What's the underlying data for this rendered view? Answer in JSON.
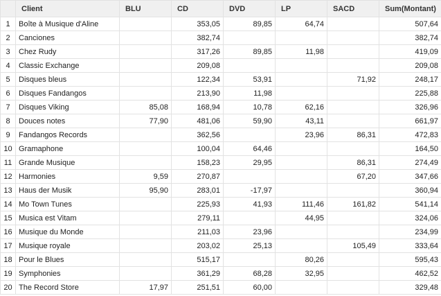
{
  "table": {
    "columns": [
      "Client",
      "BLU",
      "CD",
      "DVD",
      "LP",
      "SACD",
      "Sum(Montant)"
    ],
    "rows": [
      [
        1,
        "Boîte à Musique d'Aline",
        null,
        "353,05",
        "89,85",
        "64,74",
        null,
        "507,64"
      ],
      [
        2,
        "Canciones",
        null,
        "382,74",
        null,
        null,
        null,
        "382,74"
      ],
      [
        3,
        "Chez Rudy",
        null,
        "317,26",
        "89,85",
        "11,98",
        null,
        "419,09"
      ],
      [
        4,
        "Classic Exchange",
        null,
        "209,08",
        null,
        null,
        null,
        "209,08"
      ],
      [
        5,
        "Disques bleus",
        null,
        "122,34",
        "53,91",
        null,
        "71,92",
        "248,17"
      ],
      [
        6,
        "Disques Fandangos",
        null,
        "213,90",
        "11,98",
        null,
        null,
        "225,88"
      ],
      [
        7,
        "Disques Viking",
        "85,08",
        "168,94",
        "10,78",
        "62,16",
        null,
        "326,96"
      ],
      [
        8,
        "Douces notes",
        "77,90",
        "481,06",
        "59,90",
        "43,11",
        null,
        "661,97"
      ],
      [
        9,
        "Fandangos Records",
        null,
        "362,56",
        null,
        "23,96",
        "86,31",
        "472,83"
      ],
      [
        10,
        "Gramaphone",
        null,
        "100,04",
        "64,46",
        null,
        null,
        "164,50"
      ],
      [
        11,
        "Grande Musique",
        null,
        "158,23",
        "29,95",
        null,
        "86,31",
        "274,49"
      ],
      [
        12,
        "Harmonies",
        "9,59",
        "270,87",
        null,
        null,
        "67,20",
        "347,66"
      ],
      [
        13,
        "Haus der Musik",
        "95,90",
        "283,01",
        "-17,97",
        null,
        null,
        "360,94"
      ],
      [
        14,
        "Mo Town Tunes",
        null,
        "225,93",
        "41,93",
        "111,46",
        "161,82",
        "541,14"
      ],
      [
        15,
        "Musica est Vitam",
        null,
        "279,11",
        null,
        "44,95",
        null,
        "324,06"
      ],
      [
        16,
        "Musique du Monde",
        null,
        "211,03",
        "23,96",
        null,
        null,
        "234,99"
      ],
      [
        17,
        "Musique royale",
        null,
        "203,02",
        "25,13",
        null,
        "105,49",
        "333,64"
      ],
      [
        18,
        "Pour le Blues",
        null,
        "515,17",
        null,
        "80,26",
        null,
        "595,43"
      ],
      [
        19,
        "Symphonies",
        null,
        "361,29",
        "68,28",
        "32,95",
        null,
        "462,52"
      ],
      [
        20,
        "The Record Store",
        "17,97",
        "251,51",
        "60,00",
        null,
        null,
        "329,48"
      ]
    ]
  }
}
